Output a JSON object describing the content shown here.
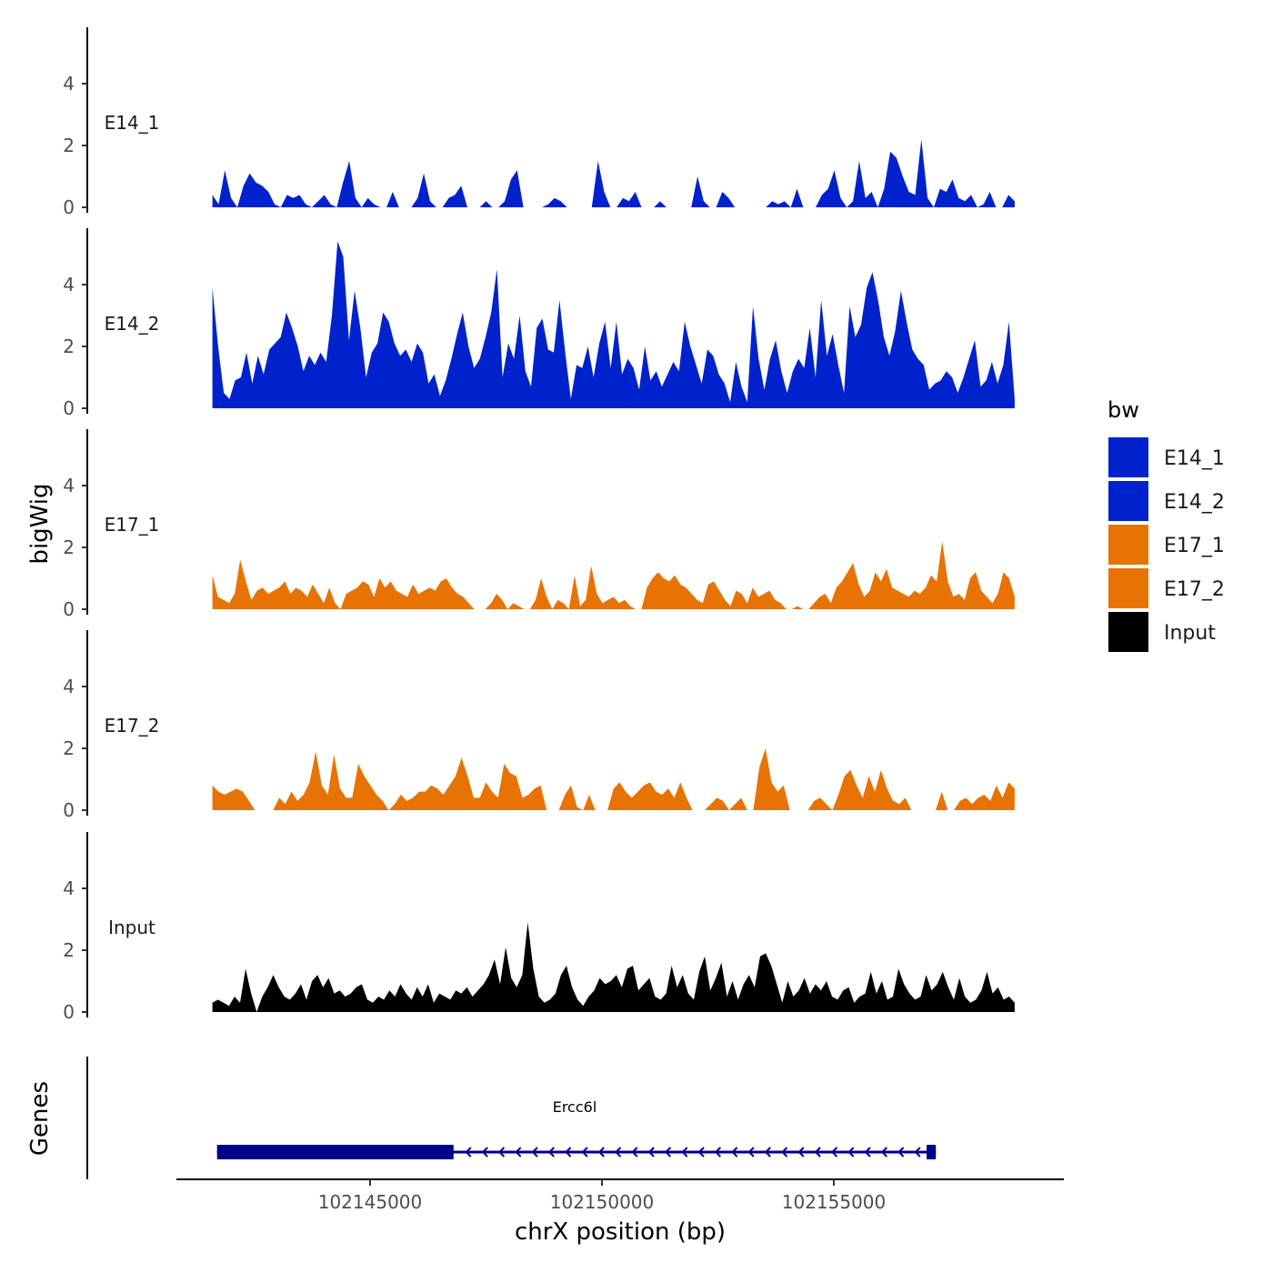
{
  "chart_data": {
    "type": "area",
    "chromosome": "chrX",
    "xlabel": "chrX position (bp)",
    "ylabel": "bigWig",
    "genes_label": "Genes",
    "xlim": [
      102141000,
      102160000
    ],
    "x_ticks": [
      102145000,
      102150000,
      102155000
    ],
    "x_tick_labels": [
      "102145000",
      "102150000",
      "102155000"
    ],
    "ylim": [
      0,
      5.8
    ],
    "y_ticks": [
      0,
      2,
      4
    ],
    "y_tick_labels": [
      "0",
      "2",
      "4"
    ],
    "data_range": [
      102141600,
      102158900
    ],
    "legend": {
      "title": "bw",
      "entries": [
        {
          "label": "E14_1",
          "color": "#0022cc"
        },
        {
          "label": "E14_2",
          "color": "#0022cc"
        },
        {
          "label": "E17_1",
          "color": "#e87305"
        },
        {
          "label": "E17_2",
          "color": "#e87305"
        },
        {
          "label": "Input",
          "color": "#000000"
        }
      ]
    },
    "tracks": [
      {
        "name": "E14_1",
        "color": "#0022cc",
        "values": [
          0.4,
          0.1,
          1.2,
          0.3,
          0.0,
          0.7,
          1.1,
          0.8,
          0.7,
          0.5,
          0.1,
          0.0,
          0.4,
          0.3,
          0.4,
          0.1,
          0.0,
          0.2,
          0.4,
          0.1,
          0.0,
          0.8,
          1.5,
          0.3,
          0.0,
          0.3,
          0.1,
          0.0,
          0.0,
          0.5,
          0.0,
          0.0,
          0.0,
          0.3,
          1.1,
          0.2,
          0.0,
          0.0,
          0.3,
          0.4,
          0.7,
          0.0,
          0.0,
          0.0,
          0.2,
          0.0,
          0.0,
          0.2,
          0.9,
          1.2,
          0.0,
          0.0,
          0.0,
          0.0,
          0.1,
          0.3,
          0.2,
          0.0,
          0.0,
          0.0,
          0.0,
          0.0,
          1.5,
          0.5,
          0.0,
          0.0,
          0.3,
          0.2,
          0.5,
          0.0,
          0.0,
          0.0,
          0.2,
          0.0,
          0.0,
          0.0,
          0.0,
          0.0,
          1.0,
          0.2,
          0.0,
          0.0,
          0.5,
          0.3,
          0.0,
          0.0,
          0.0,
          0.0,
          0.0,
          0.0,
          0.2,
          0.1,
          0.2,
          0.0,
          0.6,
          0.0,
          0.0,
          0.0,
          0.4,
          0.6,
          1.2,
          0.3,
          0.0,
          0.2,
          1.5,
          0.3,
          0.5,
          0.0,
          0.6,
          1.8,
          1.6,
          1.0,
          0.5,
          0.4,
          2.2,
          0.3,
          0.0,
          0.6,
          0.5,
          0.9,
          0.3,
          0.2,
          0.4,
          0.0,
          0.1,
          0.5,
          0.0,
          0.0,
          0.4,
          0.2
        ]
      },
      {
        "name": "E14_2",
        "color": "#0022cc",
        "values": [
          3.9,
          2.0,
          0.5,
          0.3,
          0.9,
          1.0,
          1.8,
          0.8,
          1.7,
          1.1,
          1.9,
          2.1,
          2.3,
          3.1,
          2.6,
          2.0,
          1.2,
          1.7,
          1.4,
          1.8,
          1.5,
          3.0,
          5.4,
          4.9,
          2.2,
          3.8,
          2.6,
          1.0,
          1.8,
          2.1,
          3.1,
          2.8,
          2.1,
          1.7,
          1.9,
          1.5,
          2.1,
          1.8,
          0.8,
          1.1,
          0.4,
          0.9,
          1.6,
          2.4,
          3.1,
          2.0,
          1.3,
          1.6,
          2.3,
          3.1,
          4.5,
          1.0,
          2.1,
          1.6,
          3.0,
          1.2,
          0.7,
          2.6,
          2.9,
          1.9,
          1.8,
          3.5,
          1.8,
          0.3,
          1.4,
          1.3,
          2.0,
          1.0,
          2.1,
          2.8,
          1.3,
          2.8,
          1.1,
          1.6,
          1.3,
          0.6,
          2.0,
          0.9,
          1.2,
          0.7,
          1.1,
          1.5,
          1.2,
          2.8,
          2.0,
          1.4,
          0.8,
          1.9,
          1.7,
          1.1,
          0.8,
          0.2,
          1.5,
          0.7,
          0.2,
          3.3,
          1.6,
          0.6,
          1.6,
          2.2,
          1.2,
          0.5,
          1.2,
          1.6,
          1.3,
          2.6,
          1.0,
          3.5,
          1.7,
          2.4,
          1.4,
          0.5,
          3.3,
          2.3,
          2.7,
          3.9,
          4.4,
          3.5,
          2.3,
          1.7,
          2.5,
          3.8,
          2.8,
          1.9,
          1.6,
          1.4,
          0.6,
          0.8,
          0.9,
          1.2,
          1.0,
          0.5,
          1.0,
          1.6,
          2.2,
          0.7,
          0.9,
          1.5,
          0.8,
          1.4,
          2.8,
          0.3
        ]
      },
      {
        "name": "E17_1",
        "color": "#e87305",
        "values": [
          1.1,
          0.4,
          0.3,
          0.2,
          0.5,
          1.6,
          0.9,
          0.3,
          0.6,
          0.7,
          0.5,
          0.6,
          0.7,
          0.9,
          0.5,
          0.7,
          0.6,
          0.4,
          0.8,
          0.5,
          0.2,
          0.7,
          0.2,
          0.0,
          0.5,
          0.6,
          0.7,
          0.9,
          0.8,
          0.4,
          1.0,
          0.7,
          0.9,
          0.6,
          0.5,
          0.4,
          0.8,
          0.5,
          0.6,
          0.7,
          0.6,
          0.9,
          1.0,
          0.7,
          0.5,
          0.4,
          0.2,
          0.0,
          0.0,
          0.0,
          0.2,
          0.5,
          0.3,
          0.0,
          0.2,
          0.1,
          0.0,
          0.0,
          0.3,
          1.0,
          0.4,
          0.0,
          0.3,
          0.2,
          0.0,
          1.1,
          0.1,
          0.3,
          1.4,
          0.5,
          0.2,
          0.3,
          0.4,
          0.2,
          0.3,
          0.1,
          0.0,
          0.0,
          0.7,
          1.0,
          1.2,
          1.0,
          0.9,
          1.1,
          0.8,
          0.7,
          0.5,
          0.3,
          0.2,
          0.8,
          0.9,
          0.6,
          0.3,
          0.1,
          0.6,
          0.5,
          0.2,
          0.7,
          0.4,
          0.5,
          0.6,
          0.3,
          0.2,
          0.0,
          0.0,
          0.1,
          0.0,
          0.0,
          0.2,
          0.4,
          0.5,
          0.2,
          0.7,
          0.9,
          1.2,
          1.5,
          0.8,
          0.4,
          0.6,
          1.2,
          0.9,
          1.3,
          0.7,
          0.6,
          0.5,
          0.4,
          0.6,
          0.5,
          0.7,
          1.1,
          0.9,
          2.2,
          0.9,
          0.4,
          0.5,
          0.3,
          1.0,
          1.2,
          0.6,
          0.4,
          0.2,
          0.5,
          1.2,
          1.0,
          0.4
        ]
      },
      {
        "name": "E17_2",
        "color": "#e87305",
        "values": [
          0.8,
          0.6,
          0.5,
          0.6,
          0.7,
          0.6,
          0.3,
          0.0,
          0.0,
          0.0,
          0.0,
          0.4,
          0.2,
          0.6,
          0.3,
          0.5,
          0.9,
          1.9,
          0.8,
          0.5,
          1.8,
          0.7,
          0.4,
          0.4,
          1.5,
          1.1,
          0.8,
          0.5,
          0.3,
          0.0,
          0.2,
          0.5,
          0.3,
          0.4,
          0.6,
          0.6,
          0.8,
          0.7,
          0.5,
          0.8,
          1.1,
          1.7,
          1.1,
          0.4,
          0.4,
          0.9,
          0.6,
          0.4,
          1.5,
          1.2,
          1.1,
          0.4,
          0.5,
          0.7,
          0.8,
          0.0,
          0.0,
          0.0,
          0.5,
          0.8,
          0.1,
          0.0,
          0.5,
          0.0,
          0.0,
          0.0,
          0.7,
          0.9,
          0.6,
          0.4,
          0.6,
          0.8,
          0.9,
          0.6,
          0.5,
          0.7,
          0.4,
          0.9,
          0.4,
          0.0,
          0.0,
          0.0,
          0.2,
          0.4,
          0.3,
          0.0,
          0.2,
          0.4,
          0.0,
          0.0,
          1.4,
          2.0,
          0.9,
          0.6,
          0.8,
          0.0,
          0.0,
          0.0,
          0.0,
          0.3,
          0.4,
          0.2,
          0.0,
          0.5,
          1.1,
          1.3,
          0.8,
          0.4,
          1.1,
          0.6,
          1.3,
          0.7,
          0.3,
          0.2,
          0.4,
          0.0,
          0.0,
          0.0,
          0.0,
          0.0,
          0.6,
          0.0,
          0.0,
          0.3,
          0.4,
          0.2,
          0.4,
          0.5,
          0.3,
          0.8,
          0.4,
          0.9,
          0.7
        ]
      },
      {
        "name": "Input",
        "color": "#000000",
        "values": [
          0.3,
          0.4,
          0.3,
          0.2,
          0.5,
          0.3,
          1.4,
          0.6,
          0.0,
          0.5,
          0.8,
          1.2,
          0.8,
          0.5,
          0.4,
          0.6,
          0.9,
          0.4,
          1.0,
          1.2,
          0.8,
          1.1,
          0.6,
          0.7,
          0.5,
          0.6,
          0.8,
          0.9,
          0.4,
          0.3,
          0.5,
          0.4,
          0.7,
          0.5,
          0.9,
          0.6,
          0.4,
          0.8,
          0.5,
          0.9,
          0.3,
          0.6,
          0.5,
          0.4,
          0.7,
          0.6,
          0.8,
          0.5,
          0.7,
          0.9,
          1.2,
          1.7,
          0.9,
          2.1,
          1.1,
          0.8,
          1.2,
          2.9,
          1.4,
          0.5,
          0.3,
          0.4,
          0.6,
          1.2,
          1.5,
          0.8,
          0.4,
          0.2,
          0.5,
          0.7,
          1.1,
          0.9,
          1.0,
          1.2,
          0.8,
          1.4,
          1.5,
          0.7,
          0.9,
          1.1,
          0.5,
          0.4,
          0.6,
          1.5,
          0.8,
          1.2,
          0.6,
          0.4,
          1.3,
          1.8,
          0.7,
          1.1,
          1.6,
          0.5,
          1.0,
          0.4,
          0.9,
          1.2,
          0.8,
          1.8,
          1.9,
          1.5,
          0.9,
          0.3,
          1.0,
          0.5,
          0.7,
          1.1,
          0.6,
          0.9,
          0.7,
          1.0,
          0.5,
          0.4,
          0.7,
          0.8,
          0.3,
          0.5,
          0.6,
          1.3,
          0.6,
          1.0,
          0.4,
          0.5,
          1.4,
          0.9,
          0.6,
          0.4,
          0.5,
          1.2,
          0.7,
          0.9,
          1.3,
          0.8,
          0.4,
          1.1,
          0.5,
          0.3,
          0.4,
          0.7,
          1.3,
          0.6,
          0.8,
          0.4,
          0.5,
          0.3
        ]
      }
    ],
    "gene": {
      "name": "Ercc6l",
      "strand": "-",
      "start": 102141700,
      "end": 102157200,
      "thick_block": [
        102141700,
        102146800
      ],
      "end_block": [
        102157000,
        102157200
      ]
    }
  }
}
